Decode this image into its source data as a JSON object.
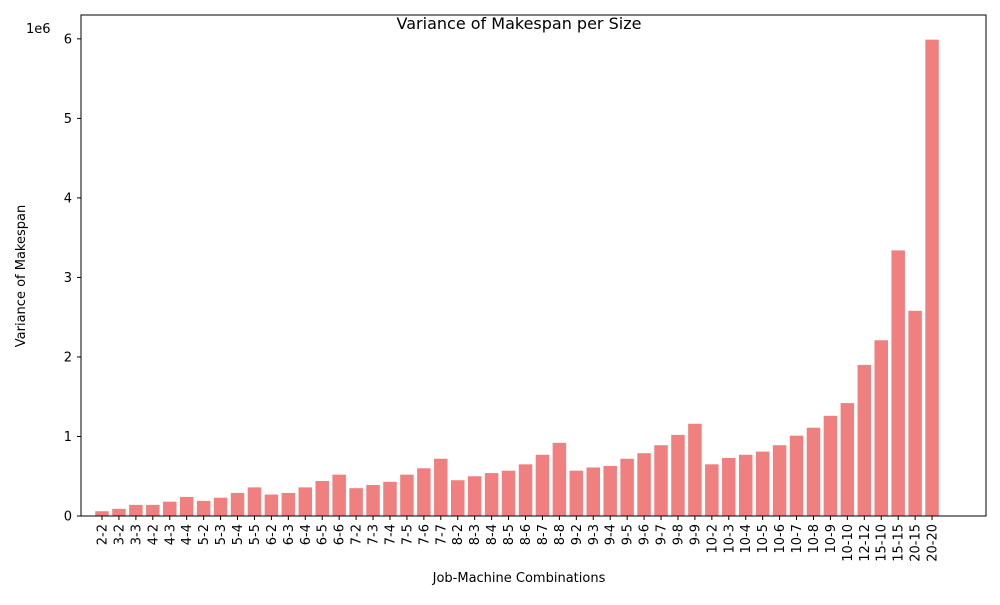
{
  "chart_data": {
    "type": "bar",
    "title": "Variance of Makespan per Size",
    "xlabel": "Job-Machine Combinations",
    "ylabel": "Variance of Makespan",
    "y_offset_label": "1e6",
    "ylim": [
      0,
      6.3
    ],
    "yticks": [
      0,
      1,
      2,
      3,
      4,
      5,
      6
    ],
    "bar_color": "#f08080",
    "grid": false,
    "categories": [
      "2-2",
      "3-2",
      "3-3",
      "4-2",
      "4-3",
      "4-4",
      "5-2",
      "5-3",
      "5-4",
      "5-5",
      "6-2",
      "6-3",
      "6-4",
      "6-5",
      "6-6",
      "7-2",
      "7-3",
      "7-4",
      "7-5",
      "7-6",
      "7-7",
      "8-2",
      "8-3",
      "8-4",
      "8-5",
      "8-6",
      "8-7",
      "8-8",
      "9-2",
      "9-3",
      "9-4",
      "9-5",
      "9-6",
      "9-7",
      "9-8",
      "9-9",
      "10-2",
      "10-3",
      "10-4",
      "10-5",
      "10-6",
      "10-7",
      "10-8",
      "10-9",
      "10-10",
      "12-12",
      "15-10",
      "15-15",
      "20-15",
      "20-20"
    ],
    "values": [
      0.06,
      0.09,
      0.14,
      0.14,
      0.18,
      0.24,
      0.19,
      0.23,
      0.29,
      0.36,
      0.27,
      0.29,
      0.36,
      0.44,
      0.52,
      0.35,
      0.39,
      0.43,
      0.52,
      0.6,
      0.72,
      0.45,
      0.5,
      0.54,
      0.57,
      0.65,
      0.77,
      0.92,
      0.57,
      0.61,
      0.63,
      0.72,
      0.79,
      0.89,
      1.02,
      1.16,
      0.65,
      0.73,
      0.77,
      0.81,
      0.89,
      1.01,
      1.11,
      1.26,
      1.42,
      1.9,
      2.21,
      3.34,
      2.58,
      5.99
    ]
  }
}
